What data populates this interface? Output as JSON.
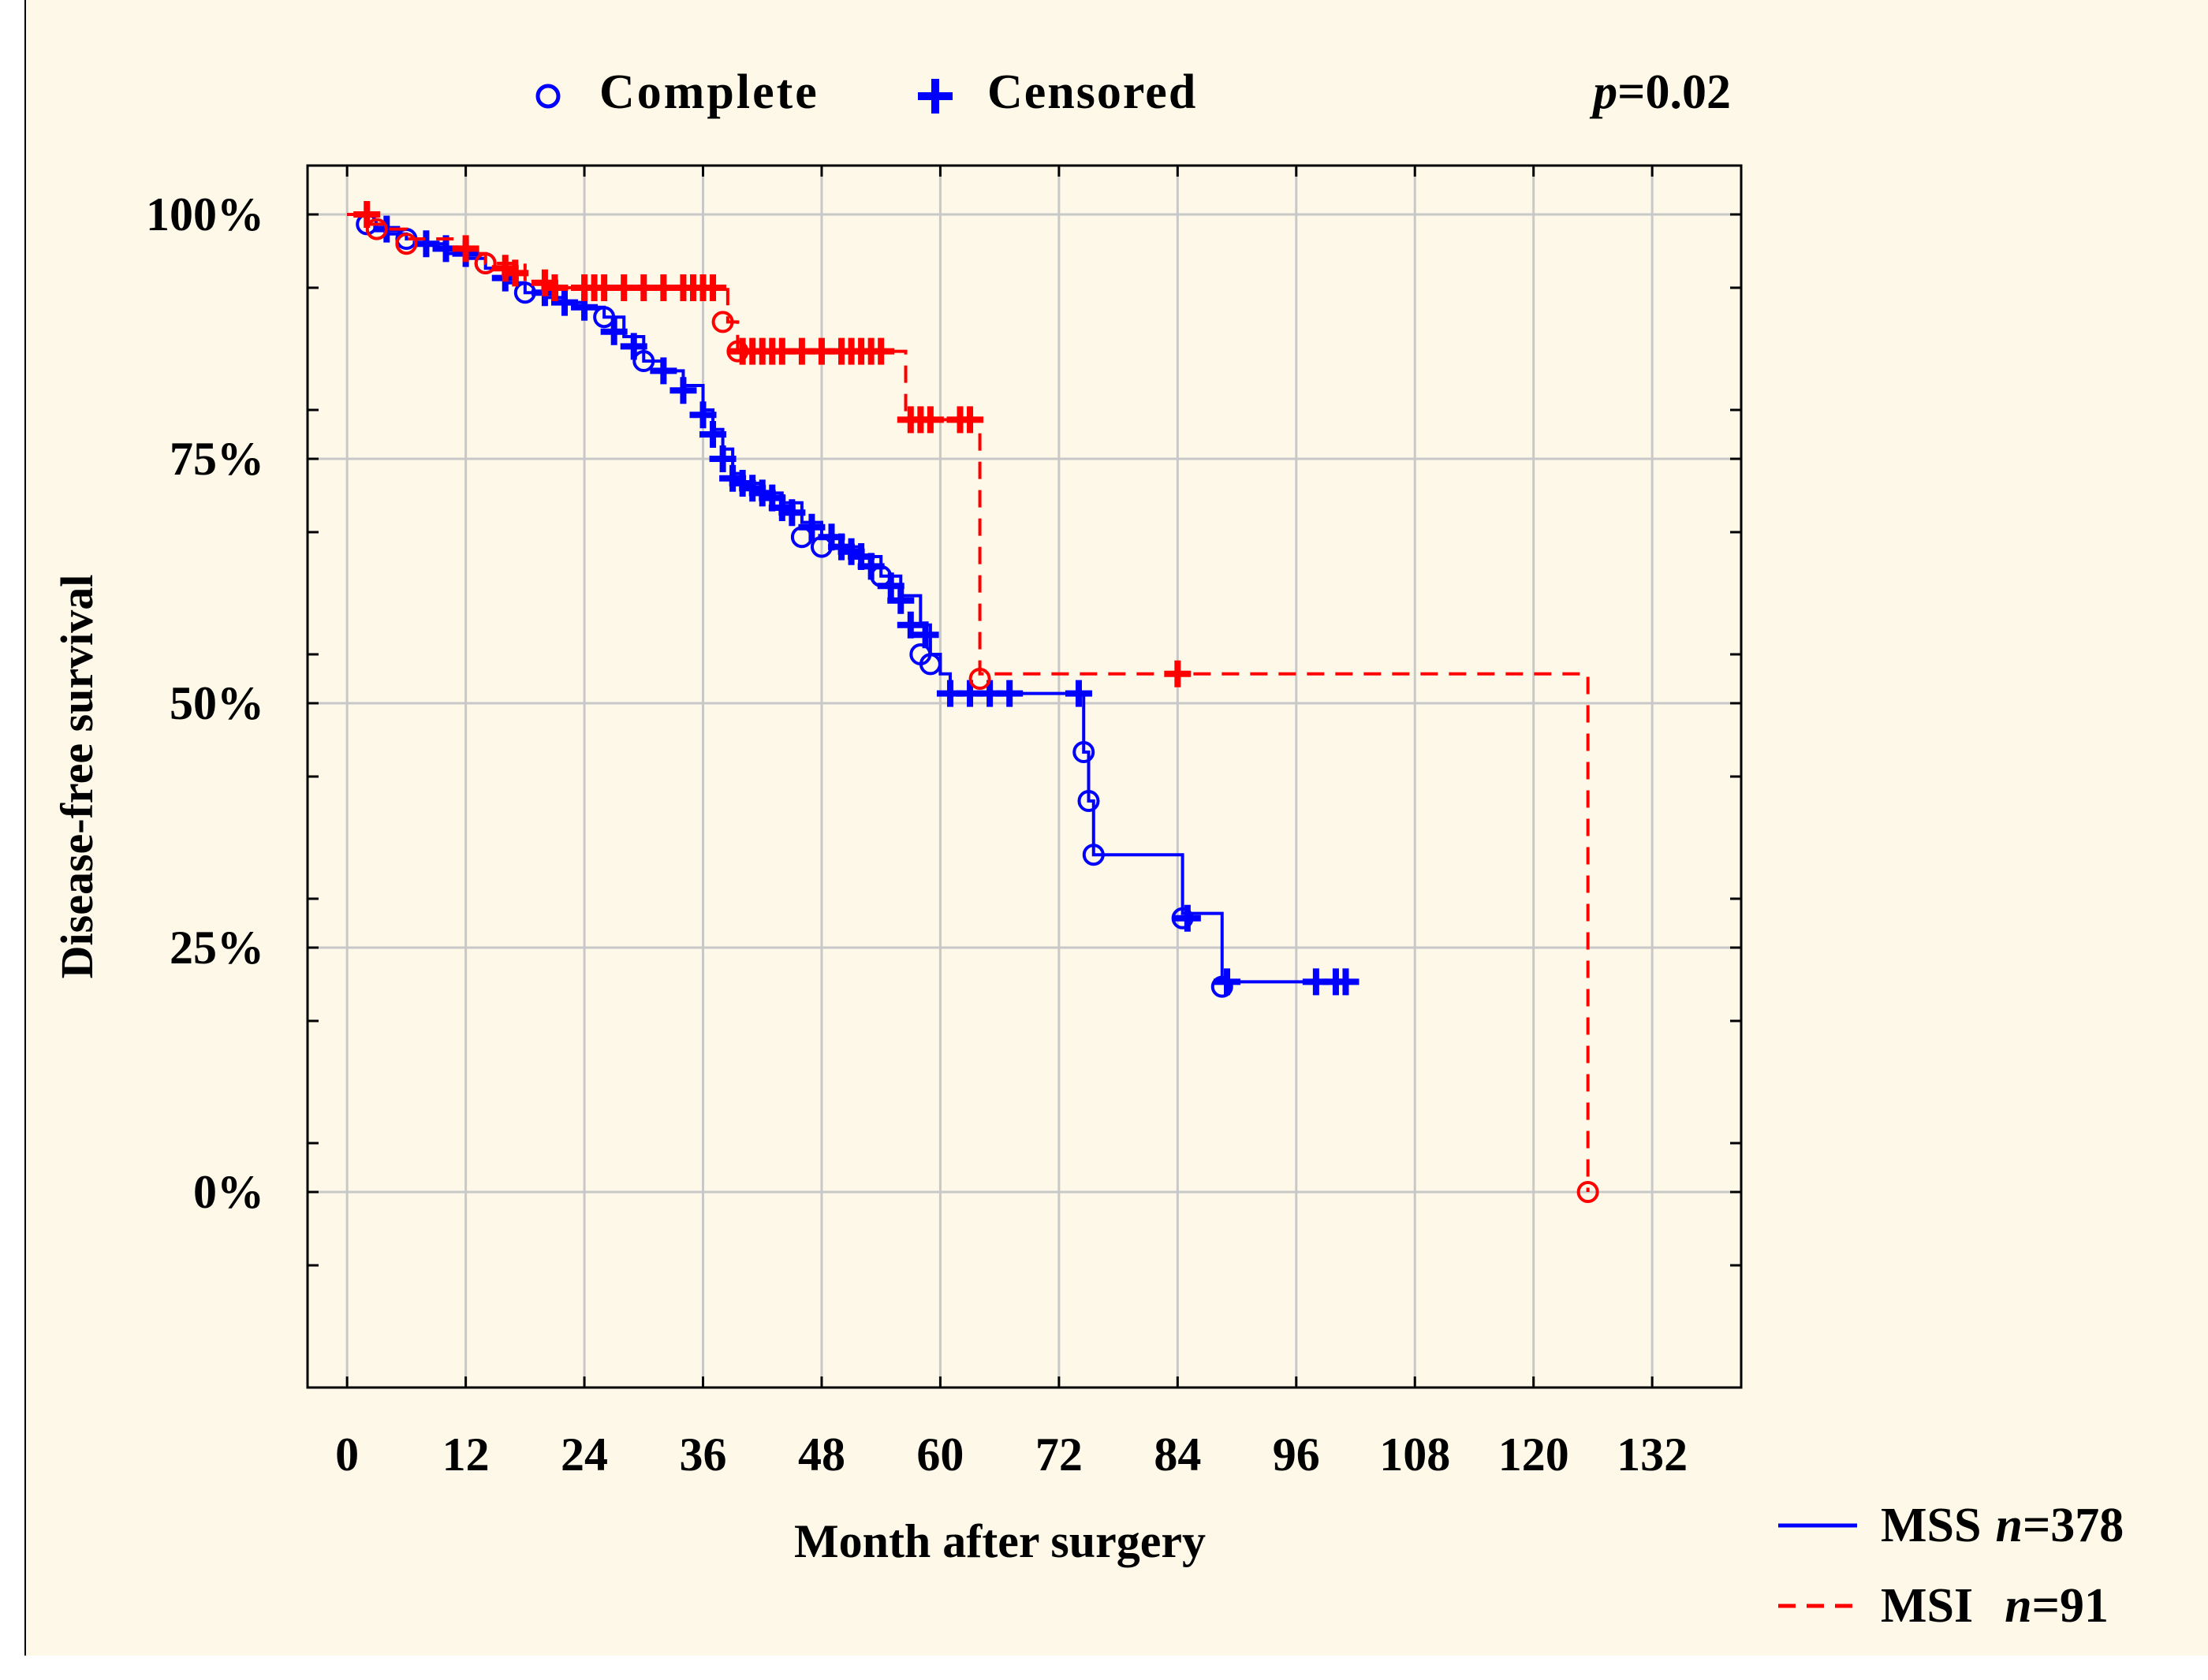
{
  "colors": {
    "background": "#fdf8e7",
    "mss": "#0000ff",
    "msi": "#ff0000",
    "grid": "#c8c8c8",
    "axis": "#000000"
  },
  "legend_top": {
    "complete_label": "Complete",
    "censored_label": "Censored",
    "p_prefix": "p",
    "p_value": "=0.02"
  },
  "chart_data": {
    "type": "line",
    "subtype": "kaplan-meier step",
    "title": "",
    "xlabel": "Month after surgery",
    "ylabel": "Disease-free survival",
    "xlim": [
      -4,
      141
    ],
    "ylim": [
      -20,
      105
    ],
    "xticks": [
      0,
      12,
      24,
      36,
      48,
      60,
      72,
      84,
      96,
      108,
      120,
      132
    ],
    "xtick_labels": [
      "0",
      "12",
      "24",
      "36",
      "48",
      "60",
      "72",
      "84",
      "96",
      "108",
      "120",
      "132"
    ],
    "yticks": [
      0,
      25,
      50,
      75,
      100
    ],
    "ytick_labels": [
      "0%",
      "25%",
      "50%",
      "75%",
      "100%"
    ],
    "grid": true,
    "legend_position": "bottom-right, outside",
    "series": [
      {
        "name": "MSS",
        "n_prefix": "n",
        "n_value": "=378",
        "style": "solid",
        "steps": [
          [
            0,
            100
          ],
          [
            2,
            99
          ],
          [
            4,
            98
          ],
          [
            6,
            97.5
          ],
          [
            8,
            97
          ],
          [
            10,
            96
          ],
          [
            12,
            95.5
          ],
          [
            14,
            94.5
          ],
          [
            16,
            93
          ],
          [
            18,
            92
          ],
          [
            20,
            91.5
          ],
          [
            22,
            91
          ],
          [
            24,
            90.5
          ],
          [
            26,
            89.5
          ],
          [
            28,
            87.5
          ],
          [
            30,
            85
          ],
          [
            32,
            84
          ],
          [
            34,
            82.5
          ],
          [
            36,
            80
          ],
          [
            37,
            78
          ],
          [
            38,
            76
          ],
          [
            39,
            73.5
          ],
          [
            40,
            72.5
          ],
          [
            42,
            71.5
          ],
          [
            44,
            70.5
          ],
          [
            46,
            68.5
          ],
          [
            48,
            67
          ],
          [
            50,
            66
          ],
          [
            52,
            65
          ],
          [
            54,
            63
          ],
          [
            56,
            61
          ],
          [
            58,
            58
          ],
          [
            59,
            55
          ],
          [
            60,
            53
          ],
          [
            61,
            51
          ],
          [
            74,
            51
          ],
          [
            74.5,
            45
          ],
          [
            75,
            40
          ],
          [
            75.5,
            34.5
          ],
          [
            84,
            34.5
          ],
          [
            84.5,
            28.5
          ],
          [
            88,
            28.5
          ],
          [
            88.5,
            21.5
          ],
          [
            102,
            21.5
          ]
        ],
        "complete": [
          [
            2,
            99
          ],
          [
            6,
            97.5
          ],
          [
            14,
            95
          ],
          [
            18,
            92
          ],
          [
            26,
            89.5
          ],
          [
            30,
            85
          ],
          [
            46,
            67
          ],
          [
            48,
            66
          ],
          [
            54,
            63
          ],
          [
            58,
            55
          ],
          [
            59,
            54
          ],
          [
            74.5,
            45
          ],
          [
            75,
            40
          ],
          [
            75.5,
            34.5
          ],
          [
            84.5,
            28
          ],
          [
            88.5,
            21
          ]
        ],
        "censored": [
          [
            4,
            98.5
          ],
          [
            8,
            97
          ],
          [
            10,
            96.5
          ],
          [
            12,
            96
          ],
          [
            16,
            93.5
          ],
          [
            20,
            92
          ],
          [
            22,
            91
          ],
          [
            24,
            90.5
          ],
          [
            27,
            88
          ],
          [
            29,
            86.5
          ],
          [
            32,
            84
          ],
          [
            34,
            82
          ],
          [
            36,
            79.5
          ],
          [
            37,
            77.5
          ],
          [
            38,
            75
          ],
          [
            39,
            73
          ],
          [
            40,
            72.5
          ],
          [
            41,
            72
          ],
          [
            42,
            71.5
          ],
          [
            43,
            71
          ],
          [
            44,
            70
          ],
          [
            45,
            69.5
          ],
          [
            47,
            68
          ],
          [
            49,
            67
          ],
          [
            50,
            66
          ],
          [
            51,
            65.5
          ],
          [
            52,
            65
          ],
          [
            53,
            64
          ],
          [
            55,
            62
          ],
          [
            56,
            60.5
          ],
          [
            57,
            58
          ],
          [
            58.5,
            57
          ],
          [
            61,
            51
          ],
          [
            63,
            51
          ],
          [
            65,
            51
          ],
          [
            67,
            51
          ],
          [
            74,
            51
          ],
          [
            85,
            28
          ],
          [
            89,
            21.5
          ],
          [
            98,
            21.5
          ],
          [
            100,
            21.5
          ],
          [
            101,
            21.5
          ]
        ]
      },
      {
        "name": "MSI",
        "n_prefix": "n",
        "n_value": "=91",
        "style": "dashed",
        "steps": [
          [
            0,
            100
          ],
          [
            2,
            99
          ],
          [
            4,
            98.5
          ],
          [
            6,
            97.5
          ],
          [
            8,
            97.5
          ],
          [
            12,
            96
          ],
          [
            14,
            95
          ],
          [
            18,
            93
          ],
          [
            20,
            92.5
          ],
          [
            38,
            92.5
          ],
          [
            38.5,
            89
          ],
          [
            39.5,
            86
          ],
          [
            56,
            86
          ],
          [
            56.5,
            79
          ],
          [
            63.5,
            79
          ],
          [
            64,
            53
          ],
          [
            125,
            53
          ],
          [
            125.5,
            0
          ]
        ],
        "complete": [
          [
            3,
            98.5
          ],
          [
            6,
            97
          ],
          [
            14,
            95
          ],
          [
            38,
            89
          ],
          [
            39.5,
            86
          ],
          [
            64,
            52.5
          ],
          [
            125.5,
            0
          ]
        ],
        "censored": [
          [
            2,
            100
          ],
          [
            12,
            96.5
          ],
          [
            16,
            94.5
          ],
          [
            17,
            94
          ],
          [
            20,
            93
          ],
          [
            21,
            92.5
          ],
          [
            24,
            92.5
          ],
          [
            25,
            92.5
          ],
          [
            26,
            92.5
          ],
          [
            28,
            92.5
          ],
          [
            30,
            92.5
          ],
          [
            32,
            92.5
          ],
          [
            34,
            92.5
          ],
          [
            35,
            92.5
          ],
          [
            36,
            92.5
          ],
          [
            37,
            92.5
          ],
          [
            40,
            86
          ],
          [
            41,
            86
          ],
          [
            42,
            86
          ],
          [
            43,
            86
          ],
          [
            44,
            86
          ],
          [
            46,
            86
          ],
          [
            48,
            86
          ],
          [
            50,
            86
          ],
          [
            51,
            86
          ],
          [
            52,
            86
          ],
          [
            53,
            86
          ],
          [
            54,
            86
          ],
          [
            57,
            79
          ],
          [
            58,
            79
          ],
          [
            59,
            79
          ],
          [
            62,
            79
          ],
          [
            63,
            79
          ],
          [
            84,
            53
          ]
        ]
      }
    ]
  }
}
